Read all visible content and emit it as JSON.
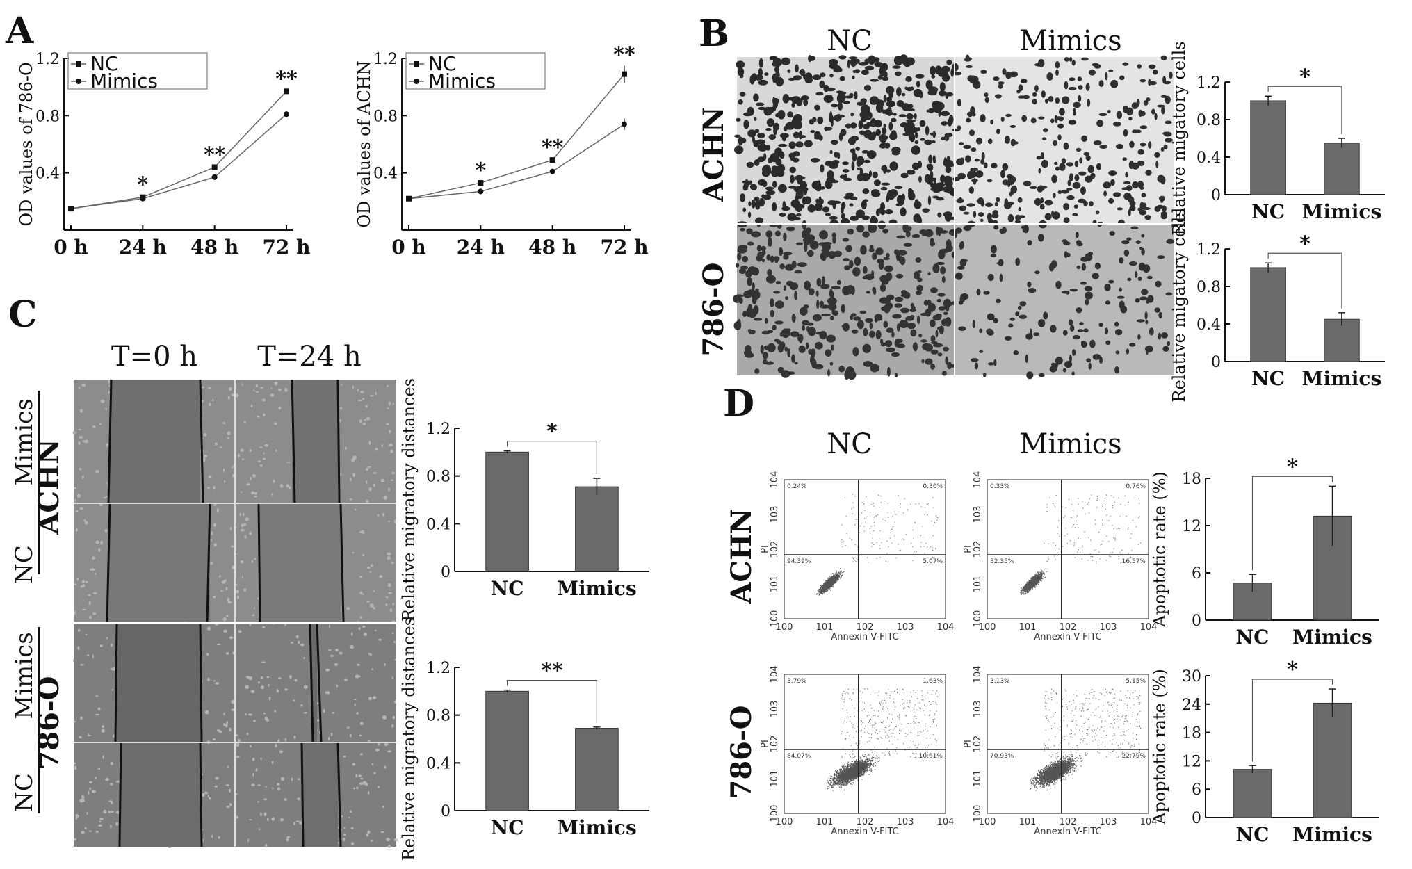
{
  "panels": {
    "A": {
      "label": "A"
    },
    "B": {
      "label": "B",
      "col_headers": [
        "NC",
        "Mimics"
      ],
      "row_headers": [
        "ACHN",
        "786-O"
      ]
    },
    "C": {
      "label": "C",
      "col_headers": [
        "T=0 h",
        "T=24 h"
      ],
      "row_groups": [
        {
          "cell": "ACHN",
          "rows": [
            "Mimics",
            "NC"
          ]
        },
        {
          "cell": "786-O",
          "rows": [
            "Mimics",
            "NC"
          ]
        }
      ]
    },
    "D": {
      "label": "D",
      "col_headers": [
        "NC",
        "Mimics"
      ],
      "row_headers": [
        "ACHN",
        "786-O"
      ]
    }
  },
  "chart_data": [
    {
      "id": "A1",
      "type": "line",
      "xlabel": "",
      "ylabel": "OD values of 786-O",
      "x": [
        "0 h",
        "24 h",
        "48 h",
        "72 h"
      ],
      "ylim": [
        0,
        1.2
      ],
      "yticks": [
        "0.4",
        "0.8",
        "1.2"
      ],
      "series": [
        {
          "name": "NC",
          "values": [
            0.15,
            0.23,
            0.44,
            0.97
          ],
          "errors": [
            0,
            0.01,
            0.01,
            0.01
          ]
        },
        {
          "name": "Mimics",
          "values": [
            0.15,
            0.22,
            0.37,
            0.81
          ],
          "errors": [
            0,
            0.01,
            0.01,
            0.02
          ]
        }
      ],
      "significance": [
        "",
        "*",
        "**",
        "**"
      ],
      "legend": "top-left"
    },
    {
      "id": "A2",
      "type": "line",
      "xlabel": "",
      "ylabel": "OD values of ACHN",
      "x": [
        "0 h",
        "24 h",
        "48 h",
        "72 h"
      ],
      "ylim": [
        0,
        1.2
      ],
      "yticks": [
        "0.4",
        "0.8",
        "1.2"
      ],
      "series": [
        {
          "name": "NC",
          "values": [
            0.22,
            0.33,
            0.49,
            1.09
          ],
          "errors": [
            0,
            0.01,
            0.01,
            0.06
          ]
        },
        {
          "name": "Mimics",
          "values": [
            0.22,
            0.27,
            0.41,
            0.74
          ],
          "errors": [
            0,
            0.02,
            0.01,
            0.04
          ]
        }
      ],
      "significance": [
        "",
        "*",
        "**",
        "**"
      ],
      "legend": "top-left"
    },
    {
      "id": "B1",
      "type": "bar",
      "ylabel": "Relative migatory cells",
      "categories": [
        "NC",
        "Mimics"
      ],
      "values": [
        1.0,
        0.55
      ],
      "errors": [
        0.05,
        0.05
      ],
      "ylim": [
        0,
        1.2
      ],
      "yticks": [
        "0",
        "0.4",
        "0.8",
        "1.2"
      ],
      "significance": "*"
    },
    {
      "id": "B2",
      "type": "bar",
      "ylabel": "Relative migatory cells",
      "categories": [
        "NC",
        "Mimics"
      ],
      "values": [
        1.0,
        0.45
      ],
      "errors": [
        0.05,
        0.07
      ],
      "ylim": [
        0,
        1.2
      ],
      "yticks": [
        "0",
        "0.4",
        "0.8",
        "1.2"
      ],
      "significance": "*"
    },
    {
      "id": "C1",
      "type": "bar",
      "ylabel": "Relative migratory distances",
      "categories": [
        "NC",
        "Mimics"
      ],
      "values": [
        1.0,
        0.71
      ],
      "errors": [
        0.01,
        0.07
      ],
      "ylim": [
        0,
        1.2
      ],
      "yticks": [
        "0",
        "0.4",
        "0.8",
        "1.2"
      ],
      "significance": "*"
    },
    {
      "id": "C2",
      "type": "bar",
      "ylabel": "Relative migratory distances",
      "categories": [
        "NC",
        "Mimics"
      ],
      "values": [
        1.0,
        0.69
      ],
      "errors": [
        0.01,
        0.01
      ],
      "ylim": [
        0,
        1.2
      ],
      "yticks": [
        "0",
        "0.4",
        "0.8",
        "1.2"
      ],
      "significance": "**"
    },
    {
      "id": "D1",
      "type": "bar",
      "ylabel": "Apoptotic rate (%)",
      "categories": [
        "NC",
        "Mimics"
      ],
      "values": [
        4.7,
        13.2
      ],
      "errors": [
        1.1,
        3.8
      ],
      "ylim": [
        0,
        18
      ],
      "yticks": [
        "0",
        "6",
        "12",
        "18"
      ],
      "significance": "*"
    },
    {
      "id": "D2",
      "type": "bar",
      "ylabel": "Apoptotic rate (%)",
      "categories": [
        "NC",
        "Mimics"
      ],
      "values": [
        10.2,
        24.2
      ],
      "errors": [
        0.8,
        3.0
      ],
      "ylim": [
        0,
        30
      ],
      "yticks": [
        "0",
        "6",
        "12",
        "18",
        "24",
        "30"
      ],
      "significance": "*"
    },
    {
      "id": "F1",
      "type": "scatter",
      "xlabel": "Annexin V-FITC",
      "ylabel": "PI",
      "ticks": [
        "100",
        "101",
        "102",
        "103",
        "104"
      ],
      "quadrants": [
        "0.24%",
        "0.30%",
        "94.39%",
        "5.07%"
      ]
    },
    {
      "id": "F2",
      "type": "scatter",
      "xlabel": "Annexin V-FITC",
      "ylabel": "PI",
      "ticks": [
        "100",
        "101",
        "102",
        "103",
        "104"
      ],
      "quadrants": [
        "0.33%",
        "0.76%",
        "82.35%",
        "16.57%"
      ]
    },
    {
      "id": "F3",
      "type": "scatter",
      "xlabel": "Annexin V-FITC",
      "ylabel": "PI",
      "ticks": [
        "100",
        "101",
        "102",
        "103",
        "104"
      ],
      "quadrants": [
        "3.79%",
        "1.63%",
        "84.07%",
        "10.61%"
      ]
    },
    {
      "id": "F4",
      "type": "scatter",
      "xlabel": "Annexin V-FITC",
      "ylabel": "PI",
      "ticks": [
        "100",
        "101",
        "102",
        "103",
        "104"
      ],
      "quadrants": [
        "3.13%",
        "5.15%",
        "70.93%",
        "22.79%"
      ]
    }
  ]
}
